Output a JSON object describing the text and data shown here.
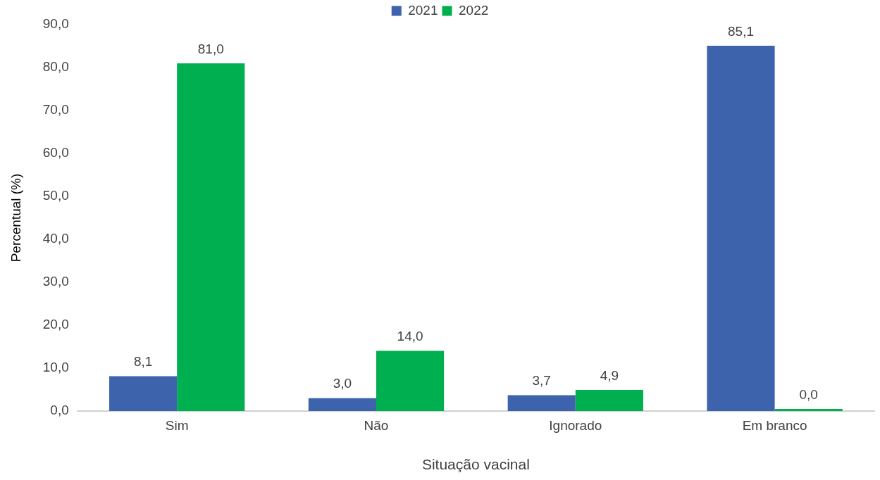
{
  "chart_data": {
    "type": "bar",
    "xlabel": "Situação vacinal",
    "ylabel": "Percentual (%)",
    "categories": [
      "Sim",
      "Não",
      "Ignorado",
      "Em branco"
    ],
    "series": [
      {
        "name": "2021",
        "color": "#3c63ac",
        "values": [
          8.1,
          3.0,
          3.7,
          85.1
        ],
        "value_labels": [
          "8,1",
          "3,0",
          "3,7",
          "85,1"
        ]
      },
      {
        "name": "2022",
        "color": "#00b050",
        "values": [
          81.0,
          14.0,
          4.9,
          0.0
        ],
        "value_labels": [
          "81,0",
          "14,0",
          "4,9",
          "0,0"
        ]
      }
    ],
    "ylim": [
      0,
      90
    ],
    "yticks": [
      {
        "value": 0,
        "label": "0,0"
      },
      {
        "value": 10,
        "label": "10,0"
      },
      {
        "value": 20,
        "label": "20,0"
      },
      {
        "value": 30,
        "label": "30,0"
      },
      {
        "value": 40,
        "label": "40,0"
      },
      {
        "value": 50,
        "label": "50,0"
      },
      {
        "value": 60,
        "label": "60,0"
      },
      {
        "value": 70,
        "label": "70,0"
      },
      {
        "value": 80,
        "label": "80,0"
      },
      {
        "value": 90,
        "label": "90,0"
      }
    ],
    "grid": false,
    "legend": "top"
  }
}
